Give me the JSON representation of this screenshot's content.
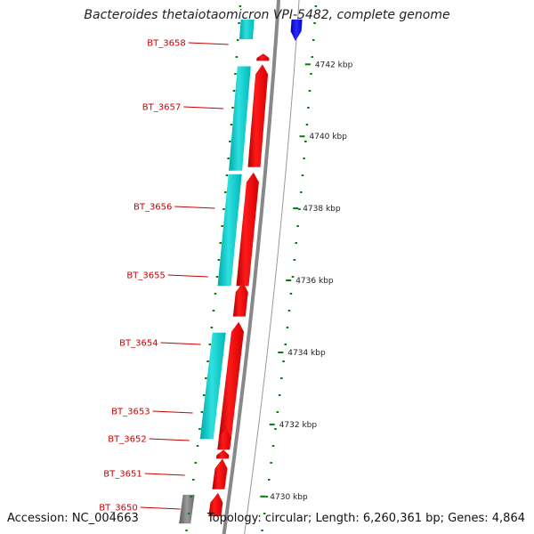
{
  "header": {
    "title": "Bacteroides thetaiotaomicron VPI-5482, complete genome"
  },
  "footer": {
    "accession": "Accession: NC_004663",
    "topology": "Topology: circular; Length: 6,260,361 bp; Genes: 4,864"
  },
  "colors": {
    "forward_cds": "#ff0000",
    "reverse_cds": "#00c8c8",
    "other_feature": "#0000ff",
    "backbone": "#888888",
    "tick": "#008000",
    "label": "#cc0000"
  },
  "chart_data": {
    "type": "genome-map",
    "axis_unit": "kbp",
    "visible_range_kbp": [
      4729.5,
      4742.7
    ],
    "ticks_kbp": [
      4730,
      4732,
      4734,
      4736,
      4738,
      4740,
      4742
    ],
    "tick_labels": [
      "4730 kbp",
      "4732 kbp",
      "4734 kbp",
      "4736 kbp",
      "4738 kbp",
      "4740 kbp",
      "4742 kbp"
    ],
    "genes": [
      {
        "name": "BT_3658",
        "start_kbp": 4741.85,
        "end_kbp": 4742.05,
        "strand": "+"
      },
      {
        "name": "BT_3657",
        "start_kbp": 4738.9,
        "end_kbp": 4741.75,
        "strand": "+"
      },
      {
        "name": "BT_3656",
        "start_kbp": 4735.6,
        "end_kbp": 4738.75,
        "strand": "+"
      },
      {
        "name": "BT_3655",
        "start_kbp": 4734.75,
        "end_kbp": 4735.7,
        "strand": "+"
      },
      {
        "name": "BT_3654",
        "start_kbp": 4731.35,
        "end_kbp": 4734.6,
        "strand": "+"
      },
      {
        "name": "BT_3653",
        "start_kbp": 4731.05,
        "end_kbp": 4731.65,
        "strand": "+"
      },
      {
        "name": "BT_3652",
        "start_kbp": 4730.8,
        "end_kbp": 4731.05,
        "strand": "+"
      },
      {
        "name": "BT_3651",
        "start_kbp": 4729.95,
        "end_kbp": 4730.8,
        "strand": "+"
      },
      {
        "name": "BT_3650",
        "start_kbp": 4729.2,
        "end_kbp": 4729.85,
        "strand": "+"
      }
    ],
    "reverse_features": [
      {
        "start_kbp": 4738.8,
        "end_kbp": 4741.7
      },
      {
        "start_kbp": 4735.6,
        "end_kbp": 4738.7
      },
      {
        "start_kbp": 4731.35,
        "end_kbp": 4734.3
      },
      {
        "start_kbp": 4742.45,
        "end_kbp": 4743.0
      }
    ],
    "other_features": [
      {
        "start_kbp": 4742.4,
        "end_kbp": 4743.0,
        "strand": "-"
      }
    ]
  }
}
